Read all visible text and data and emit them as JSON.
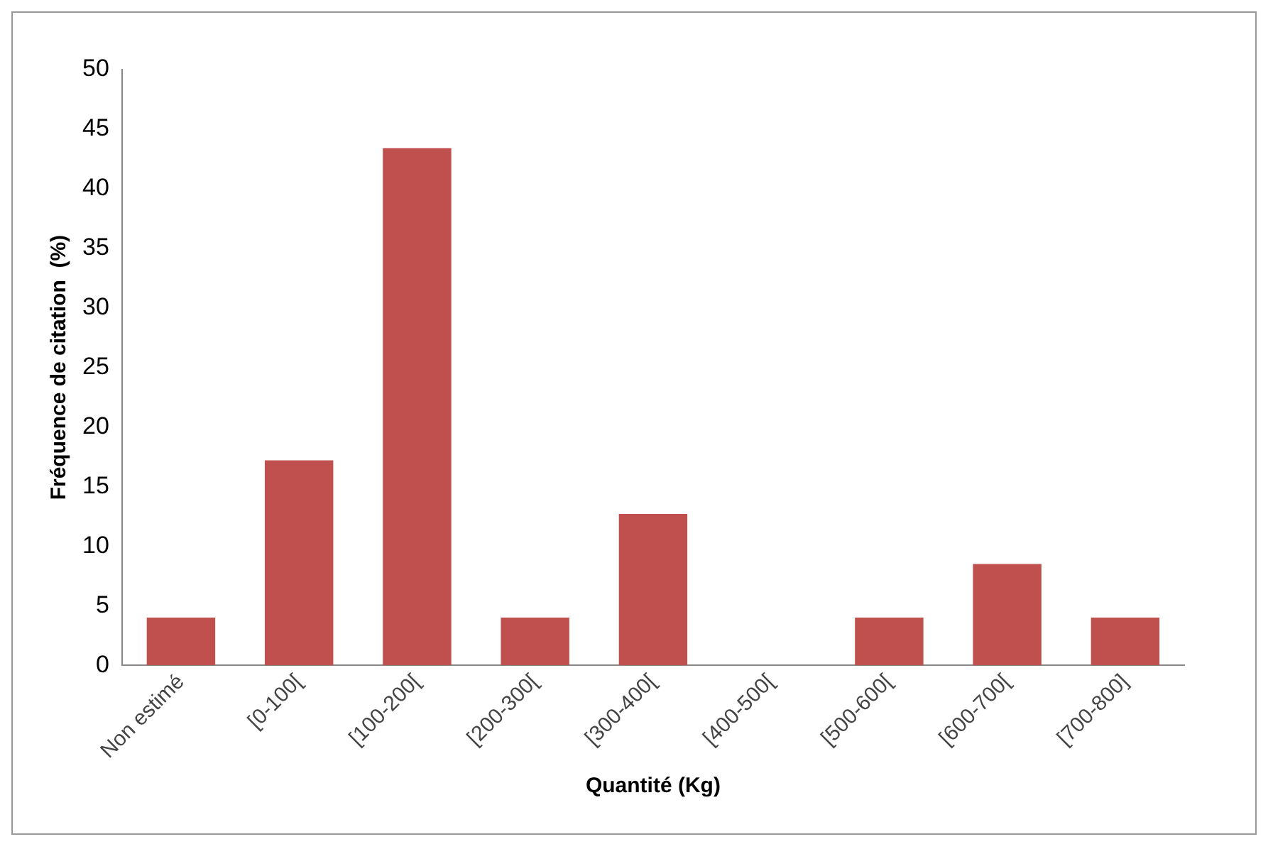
{
  "chart_data": {
    "type": "bar",
    "xlabel": "Quantité (Kg)",
    "ylabel": "Fréquence de citation  (%)",
    "categories": [
      "Non estimé",
      "[0-100[",
      "[100-200[",
      "[200-300[",
      "[300-400[",
      "[400-500[",
      "[500-600[",
      "[600-700[",
      "[700-800]"
    ],
    "values": [
      4,
      17.2,
      43.4,
      4,
      12.7,
      0,
      4,
      8.5,
      4
    ],
    "color": "#c0504d",
    "ylim": [
      0,
      50
    ],
    "yticks": [
      0,
      5,
      10,
      15,
      20,
      25,
      30,
      35,
      40,
      45,
      50
    ],
    "grid": false,
    "legend": false
  }
}
